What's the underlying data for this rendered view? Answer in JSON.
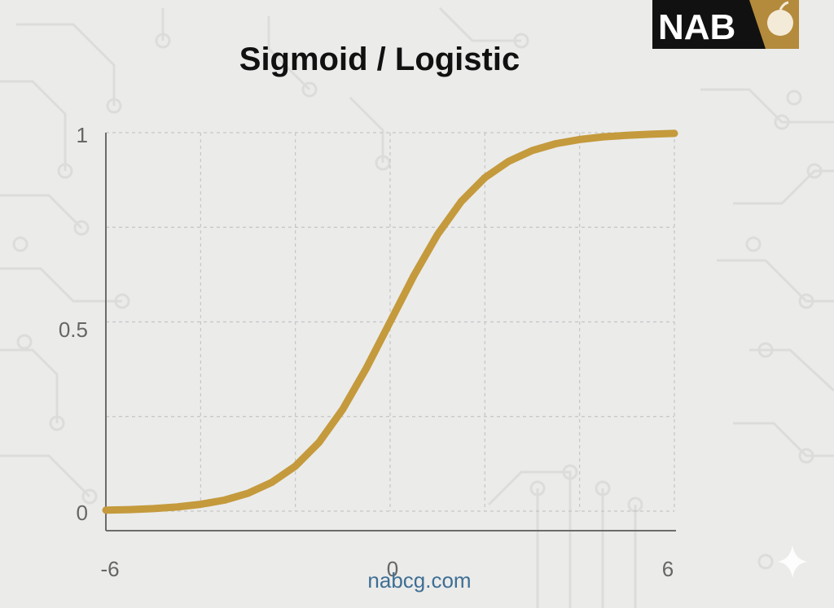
{
  "brand": {
    "logo_text": "NAB",
    "watermark": "nabcg.com",
    "colors": {
      "logo_bg": "#111111",
      "logo_accent": "#b48a3c"
    }
  },
  "chart_data": {
    "type": "line",
    "title": "Sigmoid / Logistic",
    "xlabel": "",
    "ylabel": "",
    "xlim": [
      -6,
      6
    ],
    "ylim": [
      0,
      1
    ],
    "x_ticks": [
      "-6",
      "0",
      "6"
    ],
    "y_ticks": [
      "0",
      "0.5",
      "1"
    ],
    "grid": true,
    "line_color": "#c49a3c",
    "series": [
      {
        "x": [
          -6,
          -5.5,
          -5,
          -4.5,
          -4,
          -3.5,
          -3,
          -2.5,
          -2,
          -1.5,
          -1,
          -0.5,
          0,
          0.5,
          1,
          1.5,
          2,
          2.5,
          3,
          3.5,
          4,
          4.5,
          5,
          5.5,
          6
        ],
        "values": [
          0.0025,
          0.0041,
          0.0067,
          0.011,
          0.018,
          0.029,
          0.047,
          0.076,
          0.119,
          0.182,
          0.269,
          0.378,
          0.5,
          0.622,
          0.731,
          0.818,
          0.881,
          0.924,
          0.953,
          0.971,
          0.982,
          0.989,
          0.993,
          0.996,
          0.998
        ]
      }
    ]
  },
  "icons": {
    "corner": "sparkle-icon",
    "logo": "apple-icon"
  }
}
